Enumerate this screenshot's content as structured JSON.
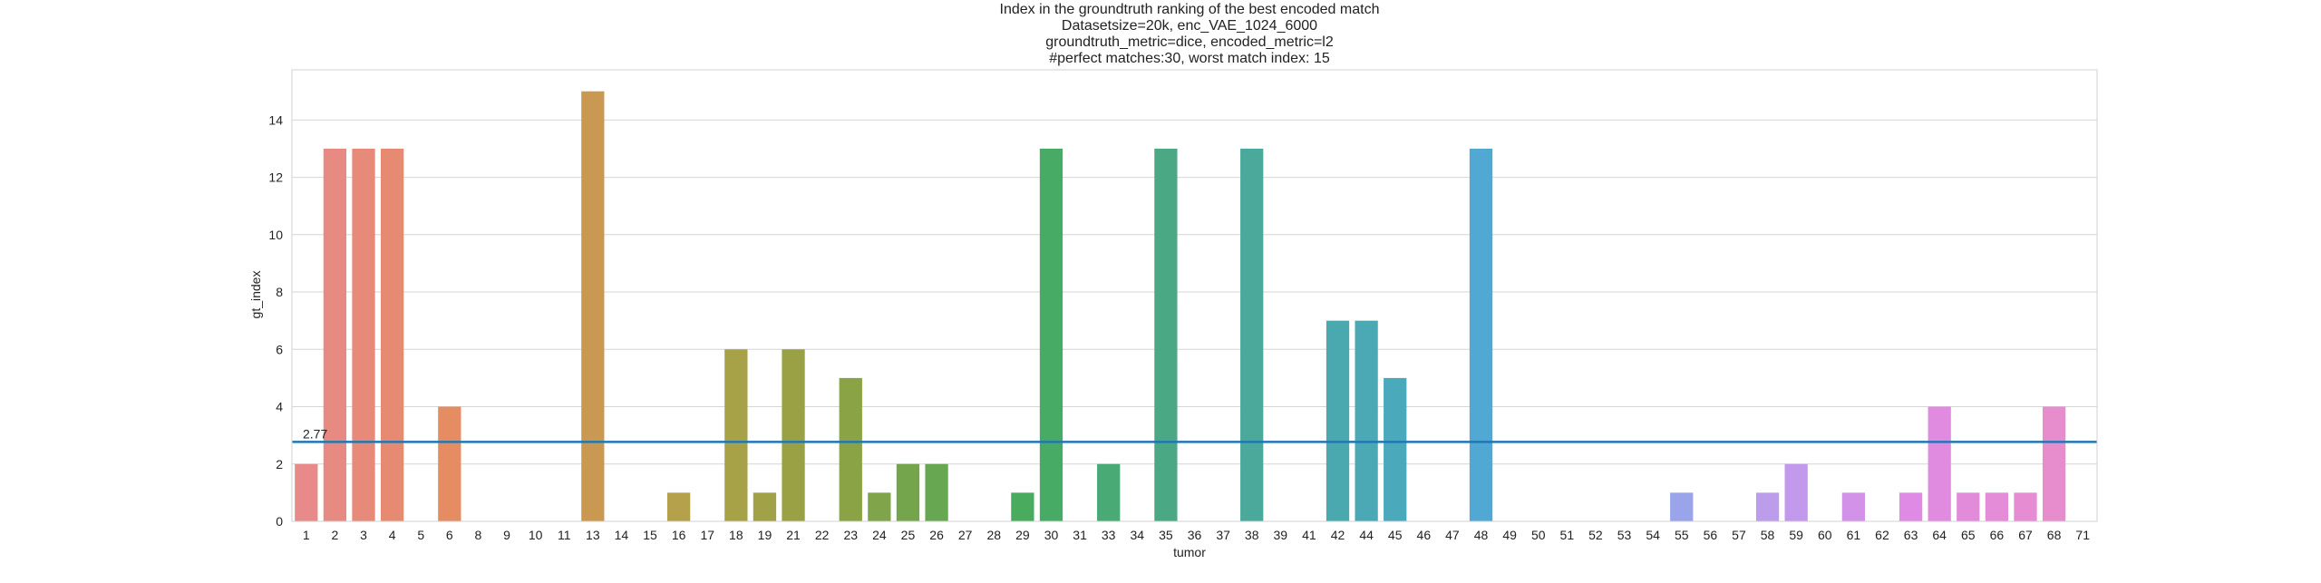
{
  "chart_data": {
    "type": "bar",
    "title": [
      "Index in the groundtruth ranking of the best encoded match",
      "Datasetsize=20k, enc_VAE_1024_6000",
      "groundtruth_metric=dice, encoded_metric=l2",
      "#perfect matches:30, worst match index: 15"
    ],
    "xlabel": "tumor",
    "ylabel": "gt_index",
    "categories": [
      "1",
      "2",
      "3",
      "4",
      "5",
      "6",
      "8",
      "9",
      "10",
      "11",
      "13",
      "14",
      "15",
      "16",
      "17",
      "18",
      "19",
      "21",
      "22",
      "23",
      "24",
      "25",
      "26",
      "27",
      "28",
      "29",
      "30",
      "31",
      "33",
      "34",
      "35",
      "36",
      "37",
      "38",
      "39",
      "41",
      "42",
      "44",
      "45",
      "46",
      "47",
      "48",
      "49",
      "50",
      "51",
      "52",
      "53",
      "54",
      "55",
      "56",
      "57",
      "58",
      "59",
      "60",
      "61",
      "62",
      "63",
      "64",
      "65",
      "66",
      "67",
      "68",
      "71"
    ],
    "values": [
      2,
      13,
      13,
      13,
      0,
      4,
      0,
      0,
      0,
      0,
      15,
      0,
      0,
      1,
      0,
      6,
      1,
      6,
      0,
      5,
      1,
      2,
      2,
      0,
      0,
      1,
      13,
      0,
      2,
      0,
      13,
      0,
      0,
      13,
      0,
      0,
      7,
      7,
      5,
      0,
      0,
      13,
      0,
      0,
      0,
      0,
      0,
      0,
      1,
      0,
      0,
      1,
      2,
      0,
      1,
      0,
      1,
      4,
      1,
      1,
      1,
      4,
      0
    ],
    "ylim": [
      0,
      15.75
    ],
    "yticks": [
      0,
      2,
      4,
      6,
      8,
      10,
      12,
      14
    ],
    "grid": true,
    "mean_line": {
      "value": 2.77,
      "label": "2.77",
      "color": "#1f77b4"
    },
    "palette": [
      "#e8898a",
      "#e48d58",
      "#b9a04c",
      "#8fa243",
      "#48ab5c",
      "#4aa98c",
      "#4aa9b6",
      "#55a8e3",
      "#b2a2ee",
      "#df8be6",
      "#e88cc8"
    ]
  }
}
